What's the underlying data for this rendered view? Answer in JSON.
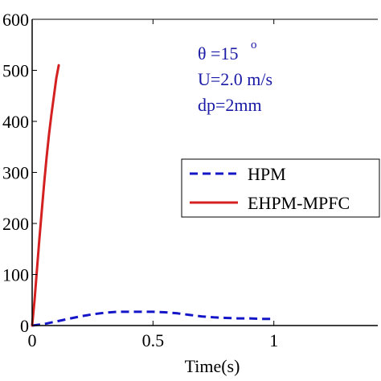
{
  "chart_data": {
    "type": "line",
    "title": "",
    "xlabel": "Time(s)",
    "ylabel": "",
    "xlim": [
      0,
      1.43
    ],
    "ylim": [
      0,
      600
    ],
    "x_ticks": [
      0,
      0.5,
      1
    ],
    "x_tick_labels": [
      "0",
      "0.5",
      "1"
    ],
    "y_ticks": [
      0,
      100,
      200,
      300,
      400,
      500,
      600
    ],
    "y_tick_labels": [
      "0",
      "100",
      "200",
      "300",
      "400",
      "500",
      "600"
    ],
    "grid": false,
    "legend_position": "right",
    "annotations": [
      "θ =15",
      "o",
      "U=2.0 m/s",
      "dp=2mm"
    ],
    "series": [
      {
        "name": "HPM",
        "color": "#1515c8",
        "style": "dashed",
        "x": [
          0,
          0.05,
          0.1,
          0.15,
          0.2,
          0.25,
          0.3,
          0.35,
          0.4,
          0.45,
          0.5,
          0.55,
          0.6,
          0.65,
          0.7,
          0.75,
          0.8,
          0.85,
          0.9,
          0.95,
          1.0
        ],
        "y": [
          0,
          3,
          8,
          13,
          18,
          22,
          25,
          27,
          27,
          27,
          27,
          26,
          24,
          21,
          18,
          16,
          15,
          14,
          14,
          13,
          13
        ]
      },
      {
        "name": "EHPM-MPFC",
        "color": "#d42020",
        "style": "solid",
        "x": [
          0,
          0.01,
          0.02,
          0.03,
          0.04,
          0.05,
          0.06,
          0.07,
          0.08,
          0.09,
          0.1,
          0.11
        ],
        "y": [
          0,
          50,
          110,
          170,
          225,
          280,
          330,
          375,
          415,
          450,
          485,
          510
        ]
      }
    ]
  }
}
